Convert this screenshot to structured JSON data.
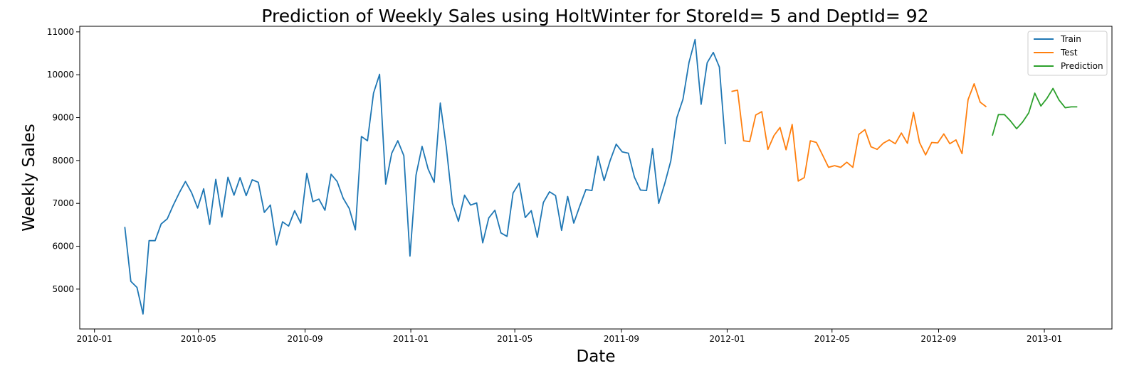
{
  "chart_data": {
    "type": "line",
    "title": "Prediction of Weekly Sales using HoltWinter for StoreId= 5 and DeptId= 92",
    "xlabel": "Date",
    "ylabel": "Weekly Sales",
    "xlim": [
      "2009-12-15",
      "2013-03-20"
    ],
    "ylim": [
      4070,
      11130
    ],
    "x_ticks": [
      "2010-01",
      "2010-05",
      "2010-09",
      "2011-01",
      "2011-05",
      "2011-09",
      "2012-01",
      "2012-05",
      "2012-09",
      "2013-01"
    ],
    "y_ticks": [
      5000,
      6000,
      7000,
      8000,
      9000,
      10000,
      11000
    ],
    "grid": false,
    "legend_position": "top-right",
    "series": [
      {
        "name": "Train",
        "color": "#1f77b4",
        "x": [
          "2010-02-05",
          "2010-02-12",
          "2010-02-19",
          "2010-02-26",
          "2010-03-05",
          "2010-03-12",
          "2010-03-19",
          "2010-03-26",
          "2010-04-02",
          "2010-04-09",
          "2010-04-16",
          "2010-04-23",
          "2010-04-30",
          "2010-05-07",
          "2010-05-14",
          "2010-05-21",
          "2010-05-28",
          "2010-06-04",
          "2010-06-11",
          "2010-06-18",
          "2010-06-25",
          "2010-07-02",
          "2010-07-09",
          "2010-07-16",
          "2010-07-23",
          "2010-07-30",
          "2010-08-06",
          "2010-08-13",
          "2010-08-20",
          "2010-08-27",
          "2010-09-03",
          "2010-09-10",
          "2010-09-17",
          "2010-09-24",
          "2010-10-01",
          "2010-10-08",
          "2010-10-15",
          "2010-10-22",
          "2010-10-29",
          "2010-11-05",
          "2010-11-12",
          "2010-11-19",
          "2010-11-26",
          "2010-12-03",
          "2010-12-10",
          "2010-12-17",
          "2010-12-24",
          "2010-12-31",
          "2011-01-07",
          "2011-01-14",
          "2011-01-21",
          "2011-01-28",
          "2011-02-04",
          "2011-02-11",
          "2011-02-18",
          "2011-02-25",
          "2011-03-04",
          "2011-03-11",
          "2011-03-18",
          "2011-03-25",
          "2011-04-01",
          "2011-04-08",
          "2011-04-15",
          "2011-04-22",
          "2011-04-29",
          "2011-05-06",
          "2011-05-13",
          "2011-05-20",
          "2011-05-27",
          "2011-06-03",
          "2011-06-10",
          "2011-06-17",
          "2011-06-24",
          "2011-07-01",
          "2011-07-08",
          "2011-07-15",
          "2011-07-22",
          "2011-07-29",
          "2011-08-05",
          "2011-08-12",
          "2011-08-19",
          "2011-08-26",
          "2011-09-02",
          "2011-09-09",
          "2011-09-16",
          "2011-09-23",
          "2011-09-30",
          "2011-10-07",
          "2011-10-14",
          "2011-10-21",
          "2011-10-28",
          "2011-11-04",
          "2011-11-11",
          "2011-11-18",
          "2011-11-25",
          "2011-12-02",
          "2011-12-09",
          "2011-12-16",
          "2011-12-23",
          "2011-12-30"
        ],
        "y": [
          6450,
          5180,
          5040,
          4420,
          6130,
          6130,
          6520,
          6640,
          6960,
          7250,
          7510,
          7250,
          6890,
          7340,
          6510,
          7560,
          6680,
          7610,
          7190,
          7600,
          7180,
          7550,
          7490,
          6790,
          6960,
          6030,
          6570,
          6470,
          6830,
          6540,
          7700,
          7040,
          7100,
          6840,
          7680,
          7510,
          7120,
          6880,
          6380,
          8560,
          8460,
          9570,
          10010,
          7450,
          8170,
          8460,
          8110,
          5770,
          7660,
          8330,
          7800,
          7490,
          9340,
          8300,
          7000,
          6580,
          7190,
          6960,
          7010,
          6080,
          6660,
          6840,
          6310,
          6230,
          7240,
          7470,
          6670,
          6830,
          6210,
          7020,
          7270,
          7180,
          6370,
          7160,
          6540,
          6940,
          7320,
          7300,
          8100,
          7530,
          8000,
          8380,
          8200,
          8170,
          7610,
          7310,
          7300,
          8280,
          7000,
          7460,
          7990,
          9000,
          9430,
          10290,
          10820,
          9310,
          10280,
          10520,
          10180,
          8380
        ]
      },
      {
        "name": "Test",
        "color": "#ff7f0e",
        "x": [
          "2012-01-06",
          "2012-01-13",
          "2012-01-20",
          "2012-01-27",
          "2012-02-03",
          "2012-02-10",
          "2012-02-17",
          "2012-02-24",
          "2012-03-02",
          "2012-03-09",
          "2012-03-16",
          "2012-03-23",
          "2012-03-30",
          "2012-04-06",
          "2012-04-13",
          "2012-04-20",
          "2012-04-27",
          "2012-05-04",
          "2012-05-11",
          "2012-05-18",
          "2012-05-25",
          "2012-06-01",
          "2012-06-08",
          "2012-06-15",
          "2012-06-22",
          "2012-06-29",
          "2012-07-06",
          "2012-07-13",
          "2012-07-20",
          "2012-07-27",
          "2012-08-03",
          "2012-08-10",
          "2012-08-17",
          "2012-08-24",
          "2012-08-31",
          "2012-09-07",
          "2012-09-14",
          "2012-09-21",
          "2012-09-28",
          "2012-10-05",
          "2012-10-12",
          "2012-10-19",
          "2012-10-26"
        ],
        "y": [
          9610,
          9640,
          8460,
          8440,
          9060,
          9140,
          8260,
          8580,
          8770,
          8250,
          8840,
          7520,
          7600,
          8460,
          8420,
          8130,
          7840,
          7880,
          7840,
          7960,
          7840,
          8610,
          8720,
          8320,
          8260,
          8400,
          8480,
          8390,
          8640,
          8400,
          9120,
          8420,
          8130,
          8420,
          8410,
          8620,
          8390,
          8480,
          8160,
          9420,
          9790,
          9360,
          9250
        ]
      },
      {
        "name": "Prediction",
        "color": "#2ca02c",
        "x": [
          "2012-11-02",
          "2012-11-09",
          "2012-11-16",
          "2012-11-23",
          "2012-11-30",
          "2012-12-07",
          "2012-12-14",
          "2012-12-21",
          "2012-12-28",
          "2013-01-04",
          "2013-01-11",
          "2013-01-18",
          "2013-01-25",
          "2013-02-01",
          "2013-02-08"
        ],
        "y": [
          8580,
          9070,
          9070,
          8920,
          8740,
          8900,
          9110,
          9570,
          9270,
          9450,
          9680,
          9410,
          9230,
          9250,
          9250
        ]
      }
    ]
  }
}
